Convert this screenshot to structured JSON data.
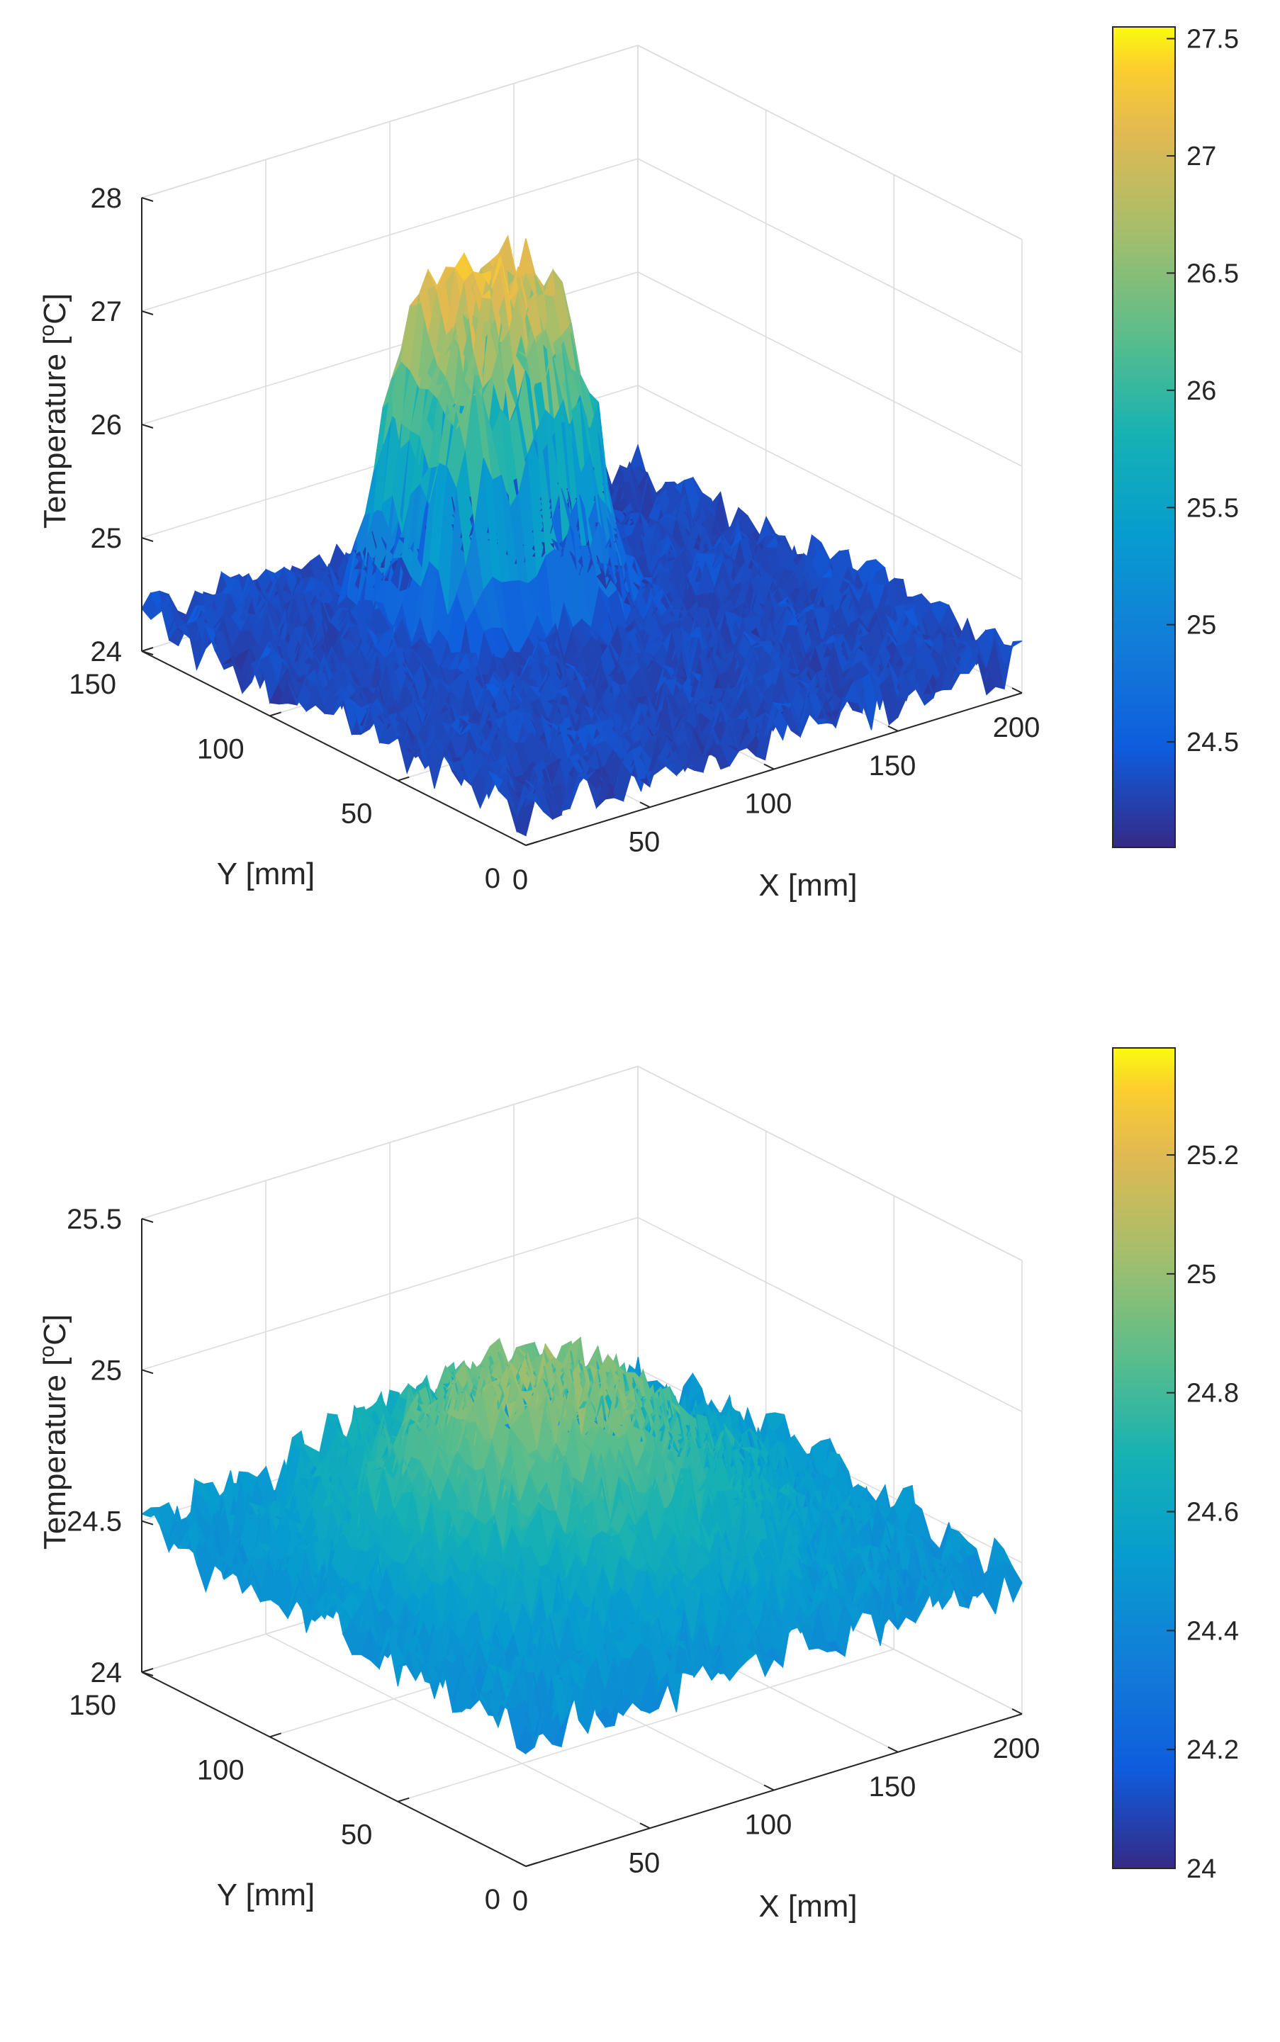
{
  "chart_data": [
    {
      "type": "surface3d",
      "title": "",
      "xlabel": "X [mm]",
      "ylabel": "Y [mm]",
      "zlabel_main": "Temperature [",
      "zlabel_sup": "o",
      "zlabel_tail": "C]",
      "xlim": [
        0,
        200
      ],
      "ylim": [
        0,
        150
      ],
      "zlim": [
        24,
        28
      ],
      "xticks": [
        0,
        50,
        100,
        150,
        200
      ],
      "xtick_labels": [
        "0",
        "50",
        "100",
        "150",
        "200"
      ],
      "yticks": [
        0,
        50,
        100,
        150
      ],
      "ytick_labels": [
        "0",
        "50",
        "100",
        "150"
      ],
      "zticks": [
        24,
        25,
        26,
        27,
        28
      ],
      "ztick_labels": [
        "24",
        "25",
        "26",
        "27",
        "28"
      ],
      "grid": true,
      "surface": {
        "base_temperature": 24.3,
        "noise_amplitude": 0.45,
        "peak_temperature": 27.3,
        "peak_center_x": 95,
        "peak_center_y": 105,
        "peak_width_x": 32,
        "peak_width_y": 22,
        "peak_shape": "plateau"
      },
      "colorbar": {
        "cmin": 24.05,
        "cmax": 27.55,
        "ticks": [
          24.5,
          25,
          25.5,
          26,
          26.5,
          27,
          27.5
        ],
        "tick_labels": [
          "24.5",
          "25",
          "25.5",
          "26",
          "26.5",
          "27",
          "27.5"
        ]
      }
    },
    {
      "type": "surface3d",
      "title": "",
      "xlabel": "X [mm]",
      "ylabel": "Y [mm]",
      "zlabel_main": "Temperature [",
      "zlabel_sup": "o",
      "zlabel_tail": "C]",
      "xlim": [
        0,
        200
      ],
      "ylim": [
        0,
        150
      ],
      "zlim": [
        24,
        25.5
      ],
      "xticks": [
        0,
        50,
        100,
        150,
        200
      ],
      "xtick_labels": [
        "0",
        "50",
        "100",
        "150",
        "200"
      ],
      "yticks": [
        0,
        50,
        100,
        150
      ],
      "ytick_labels": [
        "0",
        "50",
        "100",
        "150"
      ],
      "zticks": [
        24,
        24.5,
        25,
        25.5
      ],
      "ztick_labels": [
        "24",
        "24.5",
        "25",
        "25.5"
      ],
      "grid": true,
      "surface": {
        "base_temperature": 24.45,
        "noise_amplitude": 0.22,
        "peak_temperature": 25.0,
        "peak_center_x": 100,
        "peak_center_y": 90,
        "peak_width_x": 60,
        "peak_width_y": 50,
        "peak_shape": "gaussian"
      },
      "colorbar": {
        "cmin": 24.0,
        "cmax": 25.38,
        "ticks": [
          24,
          24.2,
          24.4,
          24.6,
          24.8,
          25,
          25.2
        ],
        "tick_labels": [
          "24",
          "24.2",
          "24.4",
          "24.6",
          "24.8",
          "25",
          "25.2"
        ]
      }
    }
  ]
}
